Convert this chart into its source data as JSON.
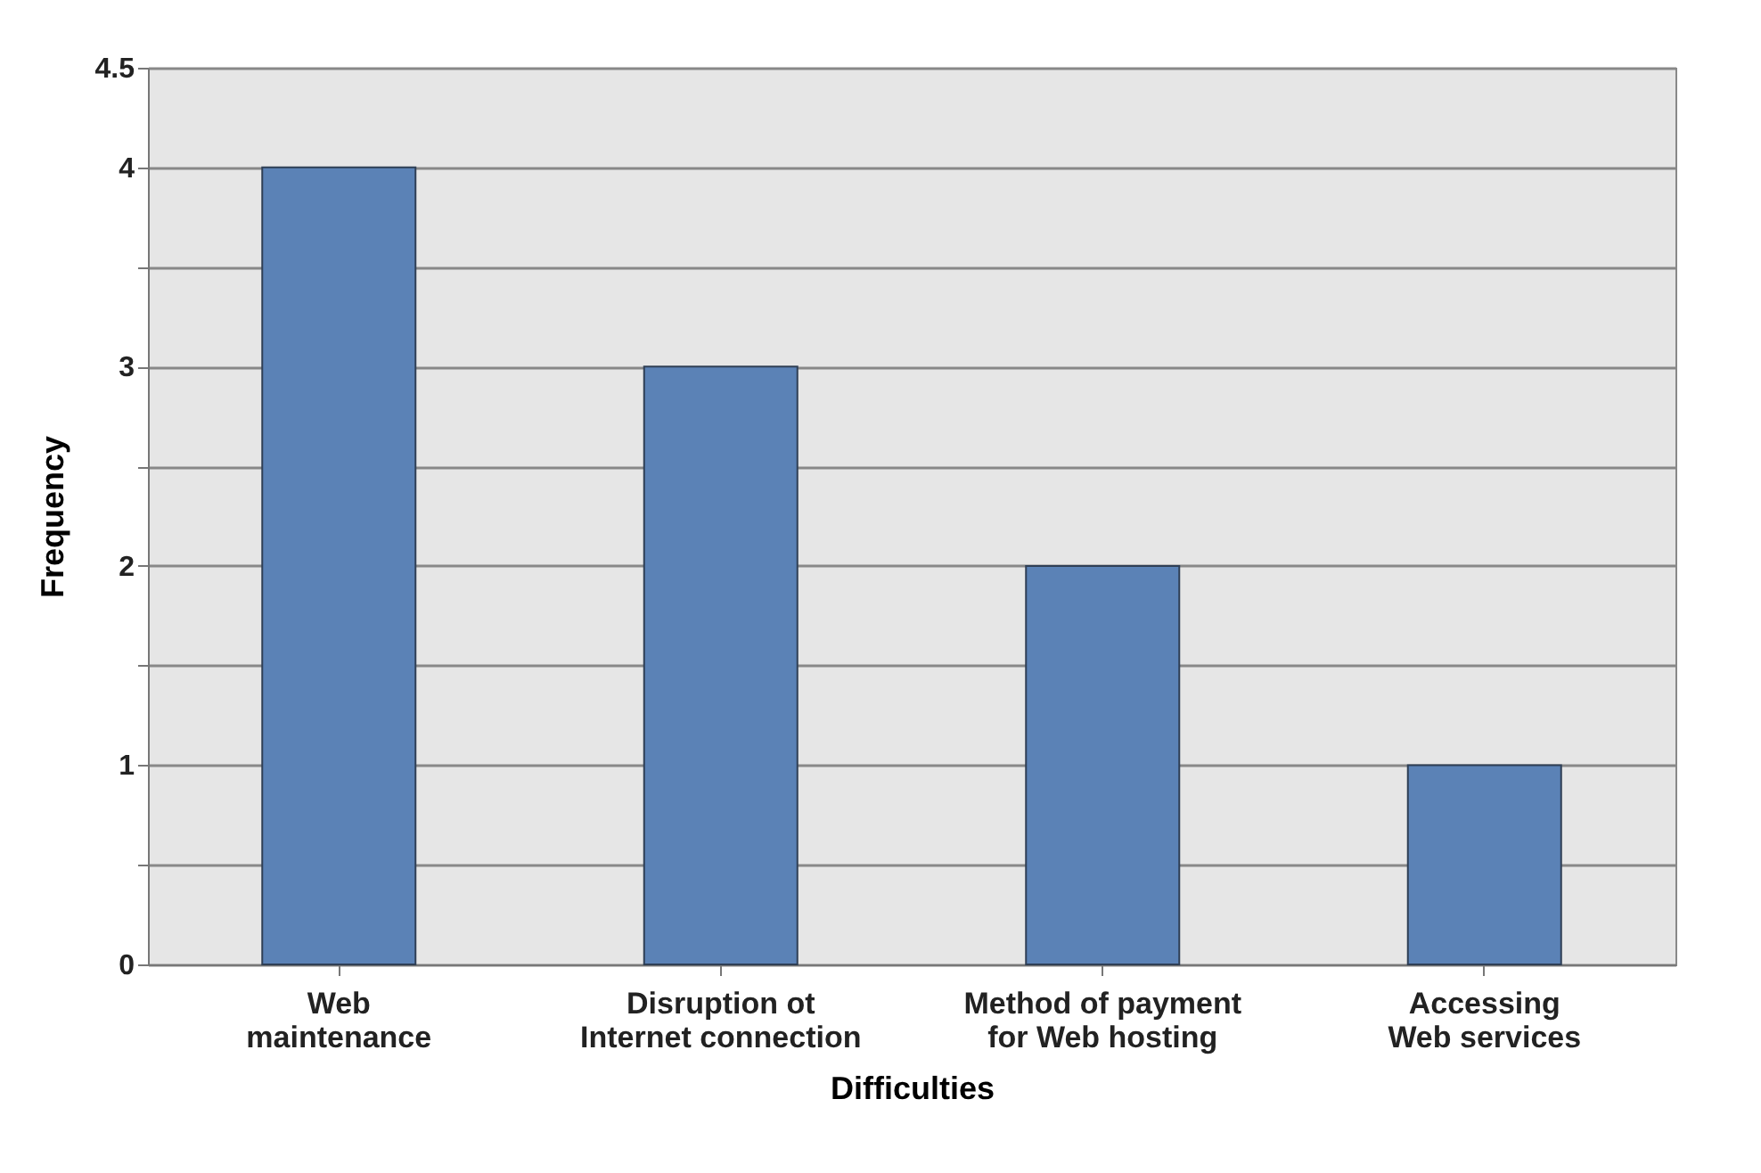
{
  "chart_data": {
    "type": "bar",
    "categories": [
      "Web maintenance",
      "Disruption ot Internet connection",
      "Method of payment for Web hosting",
      "Accessing Web services"
    ],
    "values": [
      4,
      3,
      2,
      1
    ],
    "color": "#5b82b6",
    "xlabel": "Difficulties",
    "ylabel": "Frequency",
    "ylim": [
      0,
      4.5
    ],
    "yticks": [
      0,
      {
        "value": 0.5,
        "label": null
      },
      1,
      {
        "value": 1.5,
        "label": null
      },
      2,
      {
        "value": 2.5,
        "label": null
      },
      3,
      {
        "value": 3.5,
        "label": null
      },
      4,
      4.5
    ],
    "grid": "y"
  }
}
